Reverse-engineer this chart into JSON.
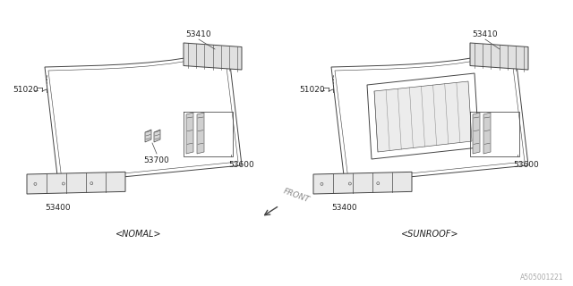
{
  "bg_color": "#ffffff",
  "line_color": "#444444",
  "text_color": "#222222",
  "footer_code": "A505001221",
  "left_label": "<NOMAL>",
  "right_label": "<SUNROOF>",
  "front_label": "FRONT",
  "lc": "#444444",
  "tc": "#222222"
}
